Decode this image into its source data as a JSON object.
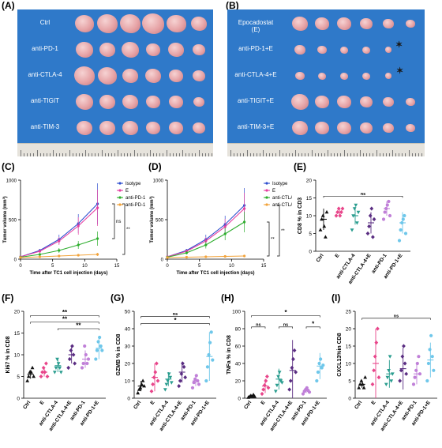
{
  "panels": {
    "A": {
      "letter": "(A)",
      "rows": [
        "Ctrl",
        "anti-PD-1",
        "anti-CTLA-4",
        "anti-TIGIT",
        "anti-TIM-3"
      ]
    },
    "B": {
      "letter": "(B)",
      "rows": [
        "Epocadostat\n(E)",
        "anti-PD-1+E",
        "anti-CTLA-4+E",
        "anti-TIGIT+E",
        "anti-TIM-3+E"
      ]
    },
    "C": {
      "letter": "(C)"
    },
    "D": {
      "letter": "(D)"
    },
    "E": {
      "letter": "(E)"
    },
    "F": {
      "letter": "(F)"
    },
    "G": {
      "letter": "(G)"
    },
    "H": {
      "letter": "(H)"
    },
    "I": {
      "letter": "(I)"
    }
  },
  "colors": {
    "photo_bg": "#2f79c9",
    "isotype": "#2f4fcf",
    "E": "#e63fa1",
    "antiPD1": "#2eae2e",
    "antiPD1E": "#f2a33a",
    "antiCTLA4": "#2eae2e",
    "antiCTLA4E": "#f2a33a",
    "grp_ctrl": "#111111",
    "grp_E": "#e8458a",
    "grp_ctla4": "#2a9d8f",
    "grp_ctla4E": "#5a2d82",
    "grp_pd1": "#c080d8",
    "grp_pd1E": "#6fc7ea"
  },
  "chart_data": [
    {
      "id": "C",
      "type": "line",
      "ylabel": "Tumor volume (mm³)",
      "xlabel": "Time  after TC1 cell injection (days)",
      "xlim": [
        0,
        15
      ],
      "ylim": [
        0,
        1000
      ],
      "xticks": [
        "0",
        "5",
        "10",
        "15"
      ],
      "yticks": [
        "0",
        "500",
        "1000"
      ],
      "x": [
        0,
        3,
        6,
        9,
        12
      ],
      "series": [
        {
          "name": "Isotype",
          "color": "#2f4fcf",
          "values": [
            30,
            110,
            250,
            450,
            700
          ],
          "err": [
            5,
            20,
            60,
            120,
            260
          ]
        },
        {
          "name": "E",
          "color": "#e63fa1",
          "values": [
            30,
            100,
            230,
            420,
            650
          ],
          "err": [
            5,
            20,
            50,
            110,
            230
          ]
        },
        {
          "name": "anti-PD-1",
          "color": "#2eae2e",
          "values": [
            25,
            60,
            110,
            180,
            260
          ],
          "err": [
            5,
            15,
            30,
            50,
            90
          ]
        },
        {
          "name": "anti-PD-1+E",
          "color": "#f2a33a",
          "values": [
            20,
            30,
            40,
            50,
            60
          ],
          "err": [
            3,
            8,
            12,
            15,
            20
          ]
        }
      ],
      "annotations": [
        "ns",
        "**"
      ]
    },
    {
      "id": "D",
      "type": "line",
      "ylabel": "Tumor volume (mm³)",
      "xlabel": "Time  after TC1 cell injection (days)",
      "xlim": [
        0,
        15
      ],
      "ylim": [
        0,
        1000
      ],
      "xticks": [
        "0",
        "5",
        "10",
        "15"
      ],
      "yticks": [
        "0",
        "500",
        "1000"
      ],
      "x": [
        0,
        3,
        6,
        9,
        12
      ],
      "series": [
        {
          "name": "Isotype",
          "color": "#2f4fcf",
          "values": [
            30,
            110,
            250,
            440,
            680
          ],
          "err": [
            5,
            20,
            60,
            110,
            220
          ]
        },
        {
          "name": "E",
          "color": "#e63fa1",
          "values": [
            30,
            100,
            230,
            410,
            640
          ],
          "err": [
            5,
            20,
            50,
            100,
            200
          ]
        },
        {
          "name": "anti-CTLA-4",
          "color": "#2eae2e",
          "values": [
            25,
            80,
            180,
            320,
            470
          ],
          "err": [
            5,
            20,
            45,
            80,
            130
          ]
        },
        {
          "name": "anti-CTLA-4+E",
          "color": "#f2a33a",
          "values": [
            20,
            25,
            30,
            35,
            40
          ],
          "err": [
            3,
            6,
            8,
            10,
            12
          ]
        }
      ],
      "annotations": [
        "**",
        "**"
      ]
    },
    {
      "id": "E",
      "type": "scatter",
      "ylabel": "CD8 % in CD3",
      "ylim": [
        0,
        20
      ],
      "yticks": [
        "0",
        "5",
        "10",
        "15",
        "20"
      ],
      "categories": [
        "Ctrl",
        "E",
        "anti-CTLA-4",
        "anti-CTLA-4+E",
        "anti-PD-1",
        "anti-PD-1+E"
      ],
      "points": [
        [
          6,
          9,
          10,
          7,
          4,
          11
        ],
        [
          10,
          11,
          12,
          10,
          11,
          12
        ],
        [
          6,
          10,
          12,
          13,
          8,
          11
        ],
        [
          5,
          7,
          10,
          12,
          4,
          9
        ],
        [
          9,
          11,
          12,
          13,
          14,
          10
        ],
        [
          3,
          6,
          8,
          9,
          10,
          5
        ]
      ],
      "means": [
        9,
        11,
        10,
        8,
        12,
        8
      ],
      "sd": [
        3,
        1,
        2.5,
        3,
        2,
        3
      ],
      "annotations": [
        {
          "text": "ns",
          "from": 0,
          "to": 5,
          "y": 15.5
        }
      ]
    },
    {
      "id": "F",
      "type": "scatter",
      "ylabel": "Ki67 %  in CD8",
      "ylim": [
        0,
        20
      ],
      "yticks": [
        "0",
        "5",
        "10",
        "15",
        "20"
      ],
      "categories": [
        "Ctrl",
        "E",
        "anti-CTLA-4",
        "anti-CTLA-4+E",
        "anti-PD-1",
        "anti-PD-1+E"
      ],
      "points": [
        [
          4,
          5,
          6,
          6,
          7,
          5
        ],
        [
          5,
          6,
          7,
          6,
          8,
          5
        ],
        [
          6,
          7,
          9,
          8,
          7,
          6
        ],
        [
          7,
          9,
          11,
          12,
          10,
          8
        ],
        [
          7,
          8,
          12,
          10,
          8,
          9
        ],
        [
          9,
          11,
          13,
          14,
          12,
          11
        ]
      ],
      "means": [
        5.5,
        6,
        7.5,
        10,
        9,
        11.5
      ],
      "sd": [
        1,
        1,
        1.5,
        2,
        2,
        2.5
      ],
      "annotations": [
        {
          "text": "**",
          "from": 0,
          "to": 5,
          "y": 19
        },
        {
          "text": "**",
          "from": 0,
          "to": 5,
          "y": 17.5
        },
        {
          "text": "**",
          "from": 2,
          "to": 5,
          "y": 16
        }
      ]
    },
    {
      "id": "G",
      "type": "scatter",
      "ylabel": "GZMB % in CD8",
      "ylim": [
        0,
        50
      ],
      "yticks": [
        "0",
        "10",
        "20",
        "30",
        "40",
        "50"
      ],
      "categories": [
        "Ctrl",
        "E",
        "anti-CTLA-4",
        "anti-CTLA-4+E",
        "anti-PD-1",
        "anti-PD-1+E"
      ],
      "points": [
        [
          3,
          5,
          6,
          8,
          10,
          7
        ],
        [
          4,
          8,
          12,
          15,
          20,
          10
        ],
        [
          5,
          8,
          10,
          14,
          12,
          9
        ],
        [
          7,
          10,
          14,
          20,
          18,
          12
        ],
        [
          6,
          9,
          11,
          13,
          10,
          8
        ],
        [
          10,
          18,
          25,
          32,
          38,
          22
        ]
      ],
      "means": [
        7,
        12,
        11,
        15,
        10,
        24
      ],
      "sd": [
        3,
        8,
        4,
        6,
        3,
        14
      ],
      "annotations": [
        {
          "text": "ns",
          "from": 0,
          "to": 5,
          "y": 47
        },
        {
          "text": "*",
          "from": 0,
          "to": 5,
          "y": 43
        }
      ]
    },
    {
      "id": "H",
      "type": "scatter",
      "ylabel": "TNFa % in CD8",
      "ylim": [
        0,
        100
      ],
      "yticks": [
        "0",
        "20",
        "40",
        "60",
        "80",
        "100"
      ],
      "categories": [
        "Ctrl",
        "E",
        "anti-CTLA-4",
        "anti-CTLA-4+E",
        "anti-PD-1",
        "anti-PD-1+E"
      ],
      "points": [
        [
          1,
          2,
          3,
          2,
          4,
          2
        ],
        [
          5,
          10,
          15,
          20,
          25,
          12
        ],
        [
          8,
          15,
          25,
          30,
          20,
          18
        ],
        [
          10,
          20,
          35,
          45,
          55,
          30
        ],
        [
          5,
          8,
          10,
          12,
          9,
          7
        ],
        [
          20,
          30,
          40,
          45,
          35,
          38
        ]
      ],
      "means": [
        2,
        14,
        22,
        32,
        9,
        37
      ],
      "sd": [
        1,
        8,
        12,
        35,
        3,
        15
      ],
      "annotations": [
        {
          "text": "*",
          "from": 0,
          "to": 5,
          "y": 95
        },
        {
          "text": "ns",
          "from": 0,
          "to": 1,
          "y": 82
        },
        {
          "text": "ns",
          "from": 2,
          "to": 3,
          "y": 82
        },
        {
          "text": "*",
          "from": 4,
          "to": 5,
          "y": 82
        }
      ]
    },
    {
      "id": "I",
      "type": "scatter",
      "ylabel": "CXCL13%in CD8",
      "ylim": [
        0,
        25
      ],
      "yticks": [
        "0",
        "5",
        "10",
        "15",
        "20",
        "25"
      ],
      "categories": [
        "Ctrl",
        "E",
        "anti-CTLA-4",
        "anti-CTLA-4+E",
        "anti-PD-1",
        "anti-PD-1+E"
      ],
      "points": [
        [
          3,
          4,
          5,
          4,
          3,
          6
        ],
        [
          4,
          8,
          12,
          16,
          20,
          6
        ],
        [
          4,
          6,
          8,
          12,
          5,
          7
        ],
        [
          5,
          8,
          12,
          15,
          10,
          7
        ],
        [
          4,
          6,
          8,
          10,
          12,
          7
        ],
        [
          5,
          10,
          14,
          18,
          12,
          8
        ]
      ],
      "means": [
        4,
        10,
        7,
        8.5,
        7,
        11
      ],
      "sd": [
        1,
        10,
        4,
        6,
        3,
        5
      ],
      "annotations": [
        {
          "text": "ns",
          "from": 0,
          "to": 5,
          "y": 23
        }
      ]
    }
  ]
}
